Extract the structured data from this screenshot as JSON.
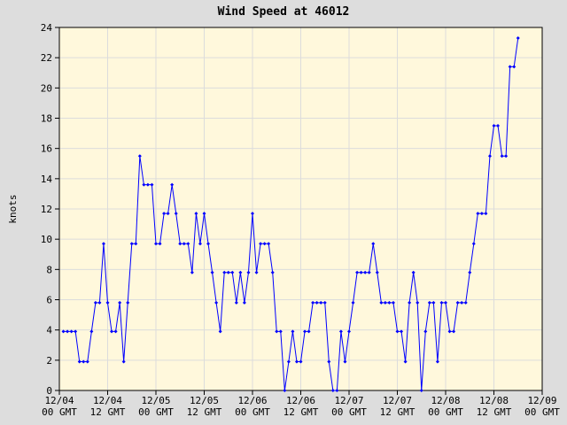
{
  "chart_data": {
    "type": "line",
    "title": "Wind Speed at 46012",
    "y_label": "knots",
    "x": [
      1,
      2,
      3,
      4,
      5,
      6,
      7,
      8,
      9,
      10,
      11,
      12,
      13,
      14,
      15,
      16,
      17,
      18,
      19,
      20,
      21,
      22,
      23,
      24,
      25,
      26,
      27,
      28,
      29,
      30,
      31,
      32,
      33,
      34,
      35,
      36,
      37,
      38,
      39,
      40,
      41,
      42,
      43,
      44,
      45,
      46,
      47,
      48,
      49,
      50,
      51,
      52,
      53,
      54,
      55,
      56,
      57,
      58,
      59,
      60,
      61,
      62,
      63,
      64,
      65,
      66,
      67,
      68,
      69,
      70,
      71,
      72,
      73,
      74,
      75,
      76,
      77,
      78,
      79,
      80,
      81,
      82,
      83,
      84,
      85,
      86,
      87,
      88,
      89,
      90,
      91,
      92,
      93,
      94,
      95,
      96,
      97,
      98,
      99,
      100,
      101,
      102,
      103,
      104,
      105,
      106,
      107,
      108,
      109,
      110,
      111,
      112,
      113,
      114
    ],
    "series": [
      {
        "name": "Wind Speed",
        "color": "#0000ff",
        "values": [
          3.9,
          3.9,
          3.9,
          3.9,
          1.9,
          1.9,
          1.9,
          3.9,
          5.8,
          5.8,
          9.7,
          5.8,
          3.9,
          3.9,
          5.8,
          1.9,
          5.8,
          9.7,
          9.7,
          15.5,
          13.6,
          13.6,
          13.6,
          9.7,
          9.7,
          11.7,
          11.7,
          13.6,
          11.7,
          9.7,
          9.7,
          9.7,
          7.8,
          11.7,
          9.7,
          11.7,
          9.7,
          7.8,
          5.8,
          3.9,
          7.8,
          7.8,
          7.8,
          5.8,
          7.8,
          5.8,
          7.8,
          11.7,
          7.8,
          9.7,
          9.7,
          9.7,
          7.8,
          3.9,
          3.9,
          0,
          1.9,
          3.9,
          1.9,
          1.9,
          3.9,
          3.9,
          5.8,
          5.8,
          5.8,
          5.8,
          1.9,
          0,
          0,
          3.9,
          1.9,
          3.9,
          5.8,
          7.8,
          7.8,
          7.8,
          7.8,
          9.7,
          7.8,
          5.8,
          5.8,
          5.8,
          5.8,
          3.9,
          3.9,
          1.9,
          5.8,
          7.8,
          5.8,
          0,
          3.9,
          5.8,
          5.8,
          1.9,
          5.8,
          5.8,
          3.9,
          3.9,
          5.8,
          5.8,
          5.8,
          7.8,
          9.7,
          11.7,
          11.7,
          11.7,
          15.5,
          17.5,
          17.5,
          15.5,
          15.5,
          21.4,
          21.4,
          23.3
        ]
      }
    ],
    "xlim": [
      0,
      120
    ],
    "xticks": [
      {
        "value": 0,
        "label": [
          "12/04",
          "00 GMT"
        ]
      },
      {
        "value": 12,
        "label": [
          "12/04",
          "12 GMT"
        ]
      },
      {
        "value": 24,
        "label": [
          "12/05",
          "00 GMT"
        ]
      },
      {
        "value": 36,
        "label": [
          "12/05",
          "12 GMT"
        ]
      },
      {
        "value": 48,
        "label": [
          "12/06",
          "00 GMT"
        ]
      },
      {
        "value": 60,
        "label": [
          "12/06",
          "12 GMT"
        ]
      },
      {
        "value": 72,
        "label": [
          "12/07",
          "00 GMT"
        ]
      },
      {
        "value": 84,
        "label": [
          "12/07",
          "12 GMT"
        ]
      },
      {
        "value": 96,
        "label": [
          "12/08",
          "00 GMT"
        ]
      },
      {
        "value": 108,
        "label": [
          "12/08",
          "12 GMT"
        ]
      },
      {
        "value": 120,
        "label": [
          "12/09",
          "00 GMT"
        ]
      }
    ],
    "ylim": [
      0,
      24
    ],
    "yticks": [
      0,
      2,
      4,
      6,
      8,
      10,
      12,
      14,
      16,
      18,
      20,
      22,
      24
    ],
    "grid": true
  }
}
